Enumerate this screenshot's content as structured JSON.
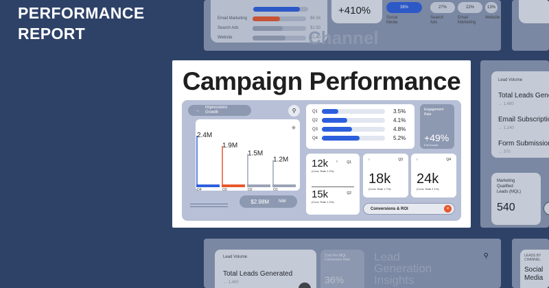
{
  "hero": {
    "title": "PERFORMANCE\nREPORT"
  },
  "top_strip": {
    "channel_bars": [
      {
        "label": "",
        "value": "",
        "color": "#2d5fdd",
        "fill": 0.85
      },
      {
        "label": "Email Marketing",
        "value": "$6.56",
        "color": "#e9572c",
        "fill": 0.5
      },
      {
        "label": "Search Ads",
        "value": "$1.50",
        "color": "#9aa3b6",
        "fill": 0.55
      },
      {
        "label": "Website",
        "value": "$1.40",
        "color": "#9aa3b6",
        "fill": 0.6
      }
    ],
    "big_value": "+410%",
    "faint_word": "Channel",
    "channels": [
      {
        "pct": "38%",
        "name": "Social\nMedia"
      },
      {
        "pct": "27%",
        "name": "Search\nAds"
      },
      {
        "pct": "22%",
        "name": "Email\nMarketing"
      },
      {
        "pct": "13%",
        "name": "Website"
      }
    ]
  },
  "main": {
    "title": "Campaign Performance",
    "impressions_label": "Impressions\nGrowth",
    "chart_data": {
      "type": "bar",
      "categories": [
        "Q4",
        "Q3",
        "Q2",
        "Q1"
      ],
      "values": [
        2.4,
        1.9,
        1.5,
        1.2
      ],
      "value_labels": [
        "2.4M",
        "1.9M",
        "1.5M",
        "1.2M"
      ],
      "colors": [
        "#2d5fdd",
        "#e9572c",
        "#9aa3b6",
        "#9aa3b6"
      ]
    },
    "kpi_value": "$2.98M",
    "kpi_unit": "NiM",
    "quarters": [
      {
        "label": "Q1",
        "value": "3.5%",
        "fill": 0.26
      },
      {
        "label": "Q2",
        "value": "4.1%",
        "fill": 0.4
      },
      {
        "label": "Q3",
        "value": "4.8%",
        "fill": 0.48
      },
      {
        "label": "Q4",
        "value": "5.2%",
        "fill": 0.6
      }
    ],
    "engagement": {
      "label": "Engagement\nRate",
      "value": "+49%",
      "sub": "Full Growth"
    },
    "conversions": [
      {
        "value": "12k",
        "quarter": "Q1",
        "rate": "(Conv. Rate 1.2%)"
      },
      {
        "value": "15k",
        "quarter": "Q2",
        "rate": "(Conv. Rate 1.4%)"
      }
    ],
    "mini_cards": [
      {
        "value": "18k",
        "quarter": "Q3",
        "rate": "(Conv. Rate 1.7%)"
      },
      {
        "value": "24k",
        "quarter": "Q4",
        "rate": "(Conv. Rate 2.1%)"
      }
    ],
    "roi_label": "Conversions & ROI"
  },
  "right_mid": {
    "caption": "Lead Volume",
    "items": [
      {
        "label": "Total Leads Generated",
        "sub": "1,480"
      },
      {
        "label": "Email Subscriptions",
        "sub": "1,140"
      },
      {
        "label": "Form Submissions",
        "sub": "370"
      }
    ],
    "mql_label": "Marketing\nQualified\nLeads (MQL)",
    "mql_value": "540"
  },
  "bottom": {
    "caption": "Lead Volume",
    "item": "Total Leads Generated",
    "sub": "1,480",
    "cac_label": "Cost Per MQL Conversion Rate",
    "cac_value": "36%",
    "title": "Lead\nGeneration\nInsights",
    "right_caption": "LEADS BY CHANNEL",
    "right_item": "Social\nMedia"
  }
}
